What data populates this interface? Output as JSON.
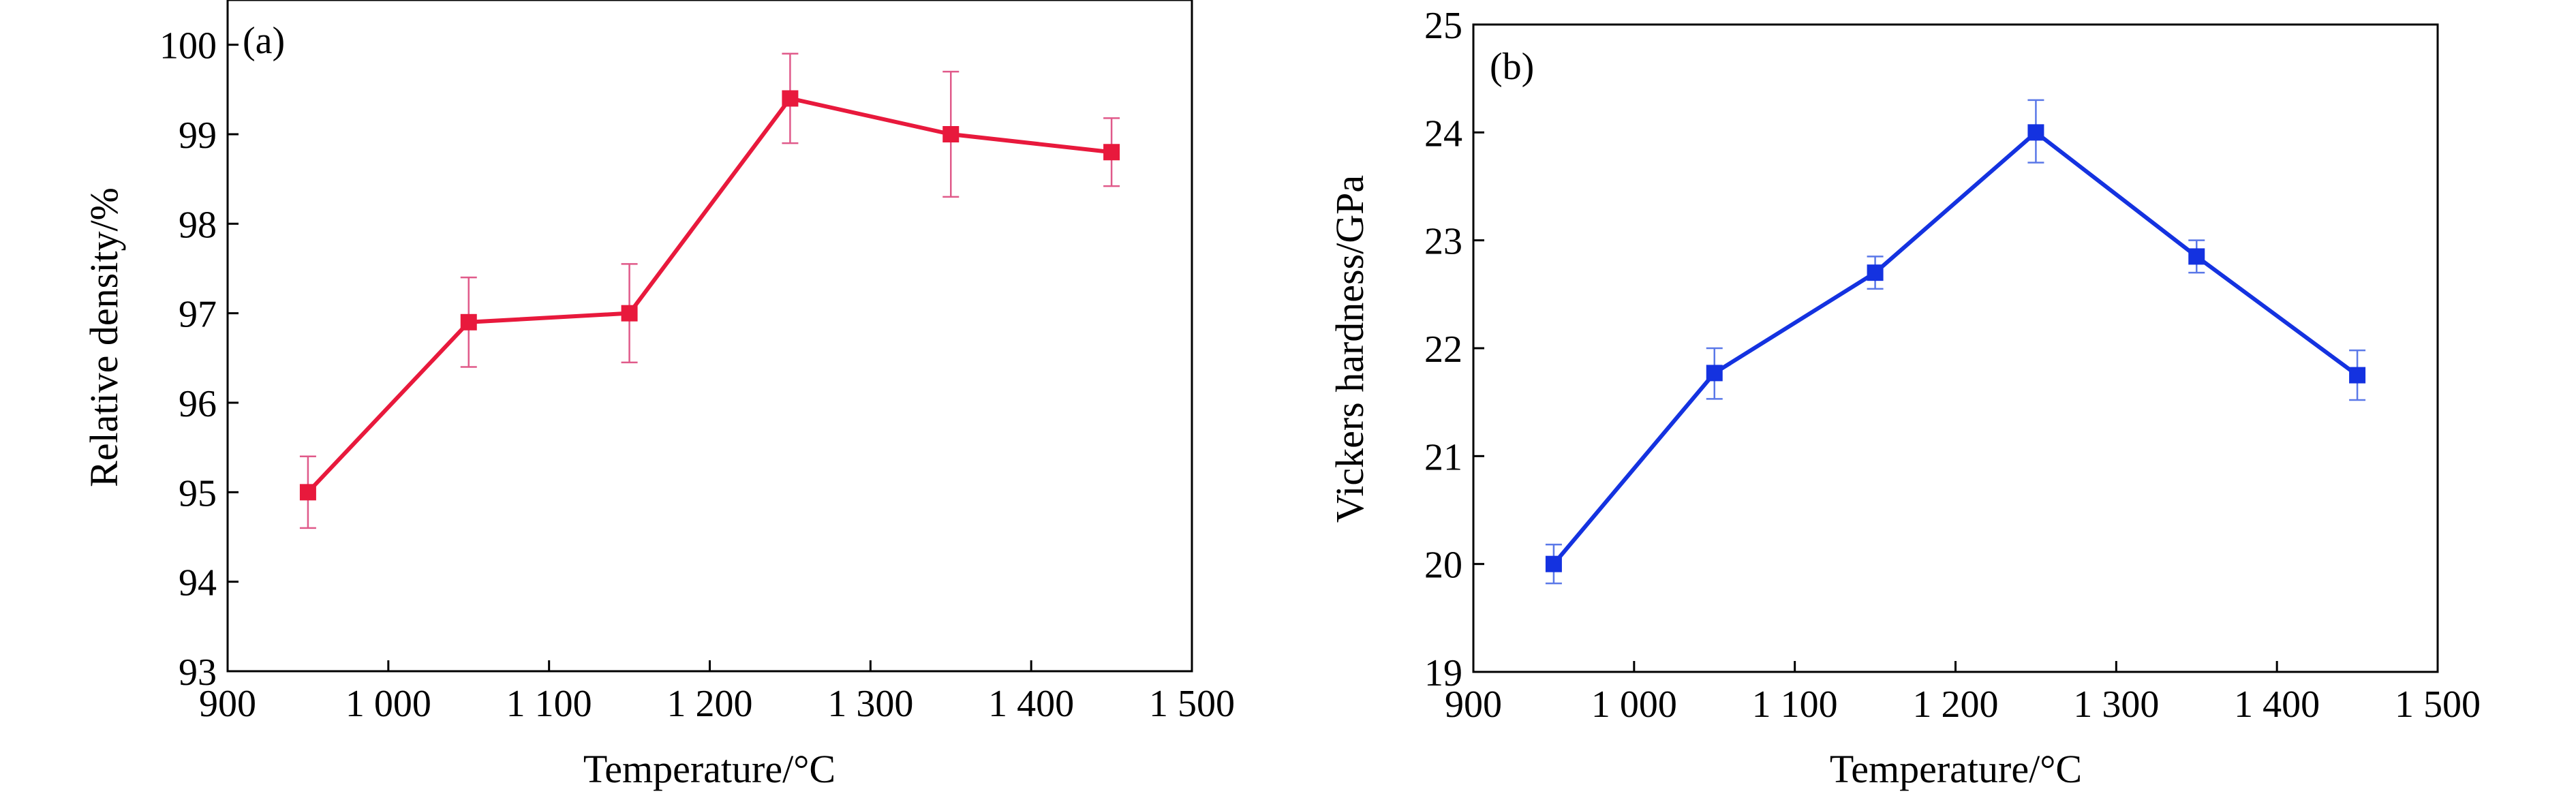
{
  "chart_data": [
    {
      "type": "line",
      "panel_label": "(a)",
      "title": "",
      "xlabel": "Temperature/°C",
      "ylabel": "Relative density/%",
      "xlim": [
        900,
        1500
      ],
      "ylim": [
        93,
        100.5
      ],
      "xticks": [
        900,
        1000,
        1100,
        1200,
        1300,
        1400,
        1500
      ],
      "xtick_labels": [
        "900",
        "1 000",
        "1 100",
        "1 200",
        "1 300",
        "1 400",
        "1 500"
      ],
      "yticks": [
        93,
        94,
        95,
        96,
        97,
        98,
        99,
        100
      ],
      "ytick_labels": [
        "93",
        "94",
        "95",
        "96",
        "97",
        "98",
        "99",
        "100"
      ],
      "grid": false,
      "line_color": "#e8193c",
      "errorbar_color": "#e05a8a",
      "series": [
        {
          "name": "Relative density",
          "x": [
            950,
            1050,
            1150,
            1250,
            1350,
            1450
          ],
          "y": [
            95.0,
            96.9,
            97.0,
            99.4,
            99.0,
            98.8
          ],
          "yerr_low": [
            94.6,
            96.4,
            96.45,
            98.9,
            98.3,
            98.42
          ],
          "yerr_high": [
            95.4,
            97.4,
            97.55,
            99.9,
            99.7,
            99.18
          ]
        }
      ]
    },
    {
      "type": "line",
      "panel_label": "(b)",
      "title": "",
      "xlabel": "Temperature/°C",
      "ylabel": "Vickers hardness/GPa",
      "xlim": [
        900,
        1500
      ],
      "ylim": [
        19,
        25
      ],
      "xticks": [
        900,
        1000,
        1100,
        1200,
        1300,
        1400,
        1500
      ],
      "xtick_labels": [
        "900",
        "1 000",
        "1 100",
        "1 200",
        "1 300",
        "1 400",
        "1 500"
      ],
      "yticks": [
        19,
        20,
        21,
        22,
        23,
        24,
        25
      ],
      "ytick_labels": [
        "19",
        "20",
        "21",
        "22",
        "23",
        "24",
        "25"
      ],
      "grid": false,
      "line_color": "#1432e0",
      "errorbar_color": "#5a78e8",
      "series": [
        {
          "name": "Vickers hardness",
          "x": [
            950,
            1050,
            1150,
            1250,
            1350,
            1450
          ],
          "y": [
            20.0,
            21.77,
            22.7,
            24.0,
            22.85,
            21.75
          ],
          "yerr_low": [
            19.82,
            21.53,
            22.55,
            23.72,
            22.7,
            21.52
          ],
          "yerr_high": [
            20.18,
            22.0,
            22.85,
            24.3,
            23.0,
            21.98
          ]
        }
      ]
    }
  ]
}
